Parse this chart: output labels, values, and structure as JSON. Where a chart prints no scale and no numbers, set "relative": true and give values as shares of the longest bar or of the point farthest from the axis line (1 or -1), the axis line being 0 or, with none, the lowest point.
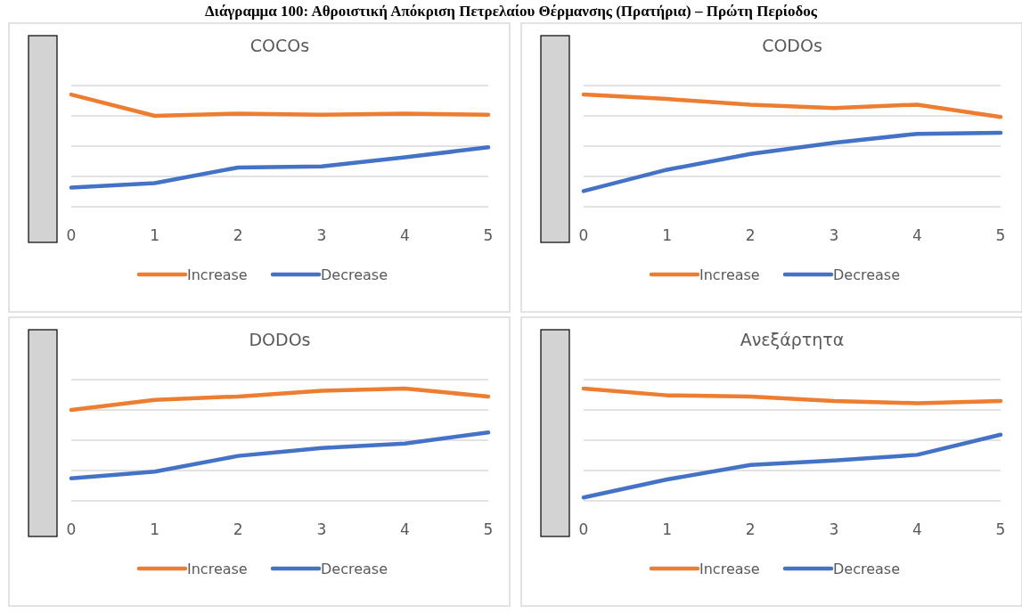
{
  "chart_data": [
    {
      "type": "line",
      "title": "COCOs",
      "annotations": [
        "Διάγραμμα 100: Αθροιστική Απόκριση Πετρελαίου Θέρμανσης (Πρατήρια) – Πρώτη Περίοδος"
      ],
      "categories": [
        "0",
        "1",
        "2",
        "3",
        "4",
        "5"
      ],
      "relative": true,
      "grid": true,
      "legend": "bottom",
      "line_style": "solid",
      "series": [
        {
          "name": "Increase",
          "color": "#ed7d31",
          "values": [
            1,
            0.81,
            0.83,
            0.82,
            0.83,
            0.82
          ]
        },
        {
          "name": "Decrease",
          "color": "#4472c4",
          "values": [
            0.17,
            0.21,
            0.35,
            0.36,
            0.44,
            0.53
          ]
        }
      ]
    },
    {
      "type": "line",
      "title": "CODOs",
      "categories": [
        "0",
        "1",
        "2",
        "3",
        "4",
        "5"
      ],
      "relative": true,
      "grid": true,
      "legend": "bottom",
      "line_style": "solid",
      "series": [
        {
          "name": "Increase",
          "color": "#ed7d31",
          "values": [
            1,
            0.96,
            0.91,
            0.88,
            0.91,
            0.8
          ]
        },
        {
          "name": "Decrease",
          "color": "#4472c4",
          "values": [
            0.14,
            0.33,
            0.47,
            0.57,
            0.65,
            0.66
          ]
        }
      ]
    },
    {
      "type": "line",
      "title": "DODOs",
      "categories": [
        "0",
        "1",
        "2",
        "3",
        "4",
        "5"
      ],
      "relative": true,
      "grid": true,
      "legend": "bottom",
      "line_style": "solid",
      "series": [
        {
          "name": "Increase",
          "color": "#ed7d31",
          "values": [
            0.81,
            0.9,
            0.93,
            0.98,
            1,
            0.93
          ]
        },
        {
          "name": "Decrease",
          "color": "#4472c4",
          "values": [
            0.2,
            0.26,
            0.4,
            0.47,
            0.51,
            0.61
          ]
        }
      ]
    },
    {
      "type": "line",
      "title": "Ανεξάρτητα",
      "categories": [
        "0",
        "1",
        "2",
        "3",
        "4",
        "5"
      ],
      "relative": true,
      "grid": true,
      "legend": "bottom",
      "line_style": "solid",
      "series": [
        {
          "name": "Increase",
          "color": "#ed7d31",
          "values": [
            1,
            0.94,
            0.93,
            0.89,
            0.87,
            0.89
          ]
        },
        {
          "name": "Decrease",
          "color": "#4472c4",
          "values": [
            0.03,
            0.19,
            0.32,
            0.36,
            0.41,
            0.59
          ]
        }
      ]
    }
  ]
}
